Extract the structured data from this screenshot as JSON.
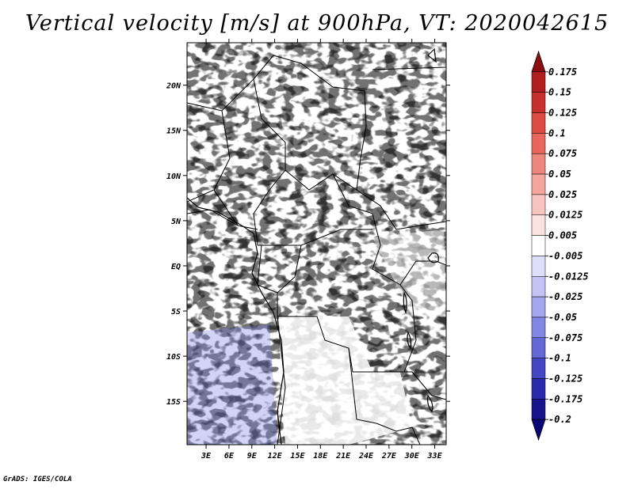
{
  "title": "Vertical velocity [m/s] at 900hPa, VT: 2020042615",
  "credit": "GrADS: IGES/COLA",
  "variable": "Vertical velocity",
  "units": "m/s",
  "level": "900hPa",
  "valid_time": "2020042615",
  "map": {
    "lon_labels": [
      "3E",
      "6E",
      "9E",
      "12E",
      "15E",
      "18E",
      "21E",
      "24E",
      "27E",
      "30E",
      "33E"
    ],
    "lat_labels": [
      "20N",
      "15N",
      "10N",
      "5N",
      "EQ",
      "5S",
      "10S",
      "15S"
    ],
    "lon_values": [
      3,
      6,
      9,
      12,
      15,
      18,
      21,
      24,
      27,
      30,
      33
    ],
    "lat_values": [
      20,
      15,
      10,
      5,
      0,
      -5,
      -10,
      -15
    ],
    "lon_range": [
      0.5,
      34.5
    ],
    "lat_range": [
      -19.8,
      24.7
    ]
  },
  "colorbar": {
    "labels": [
      "0.175",
      "0.15",
      "0.125",
      "0.1",
      "0.075",
      "0.05",
      "0.025",
      "0.0125",
      "0.005",
      "-0.005",
      "-0.0125",
      "-0.025",
      "-0.05",
      "-0.075",
      "-0.1",
      "-0.125",
      "-0.175",
      "-0.2"
    ],
    "colors": [
      "#8b0f12",
      "#b01f1d",
      "#c8302b",
      "#dd4b42",
      "#e8665c",
      "#ef867c",
      "#f4a59c",
      "#f8c5be",
      "#fbe2de",
      "#ffffff",
      "#dde0fb",
      "#c1c4f5",
      "#a3a6ee",
      "#8287e3",
      "#6468d6",
      "#4447c4",
      "#2a2bab",
      "#16138c",
      "#0a0675"
    ]
  },
  "colors": {
    "positive": "#e05a52",
    "negative": "#6466e0",
    "background": "#ffffff"
  }
}
